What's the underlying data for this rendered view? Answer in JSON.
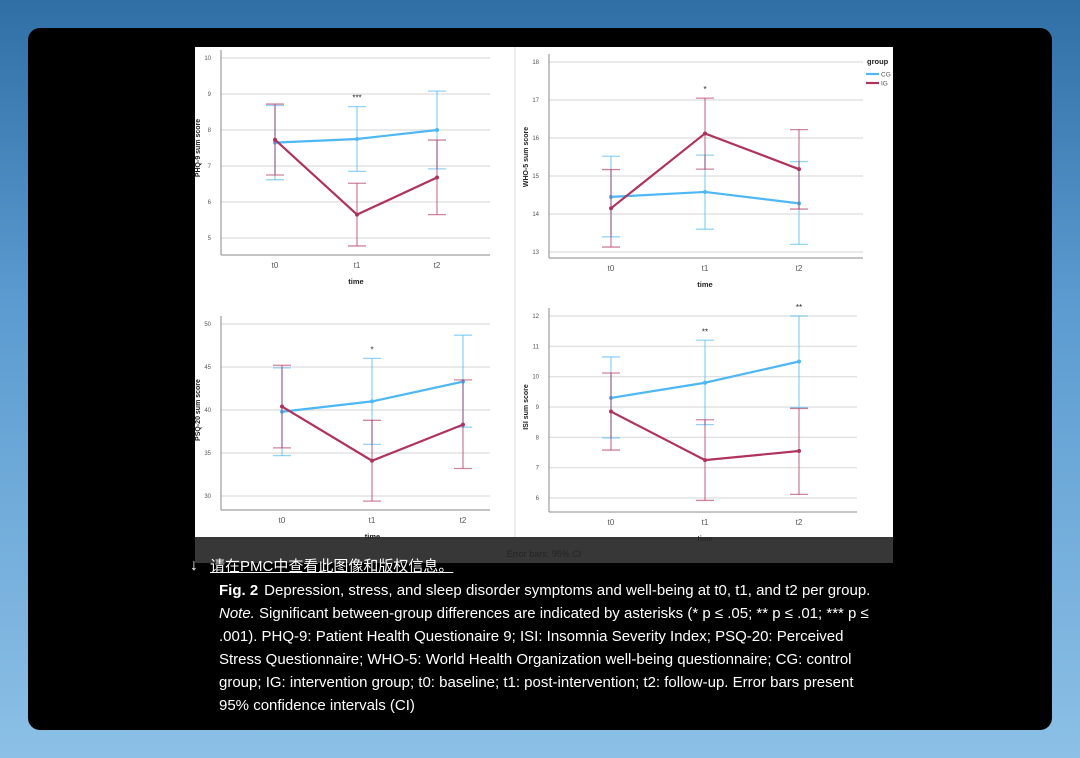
{
  "pmc_link": "请在PMC中查看此图像和版权信息。",
  "caption": {
    "label": "Fig. 2",
    "text_1": "Depression, stress, and sleep disorder symptoms and well-being at t0, t1, and t2 per group. ",
    "note_label": "Note.",
    "text_2": " Significant between-group differences are indicated by asterisks (* p ≤ .05; ** p ≤ .01; *** p ≤ .001). PHQ-9: Patient Health Questionaire 9; ISI: Insomnia Severity Index; PSQ-20: Perceived Stress Questionnaire; WHO-5: World Health Organization well-being questionnaire; CG: control group; IG: intervention group; t0: baseline; t1: post-intervention; t2: follow-up. Error bars present 95% confidence intervals (CI)"
  },
  "figure_footer": "Error bars: 95% CI",
  "colors": {
    "CG": "#4db8f5",
    "IG": "#b0325f"
  },
  "legend": {
    "title": "group",
    "items": [
      "CG",
      "IG"
    ]
  },
  "chart_data": [
    {
      "type": "line",
      "ylabel": "PHQ-9 sum score",
      "xlabel": "time",
      "categories": [
        "t0",
        "t1",
        "t2"
      ],
      "ylim": [
        5,
        10
      ],
      "yticks": [
        5,
        6,
        7,
        8,
        9,
        10
      ],
      "annotations": [
        "",
        "***",
        ""
      ],
      "series": [
        {
          "name": "CG",
          "values": [
            7.65,
            7.75,
            8.0
          ],
          "ci_low": [
            6.62,
            6.85,
            6.92
          ],
          "ci_high": [
            8.68,
            8.65,
            9.08
          ]
        },
        {
          "name": "IG",
          "values": [
            7.73,
            5.65,
            6.68
          ],
          "ci_low": [
            6.75,
            4.78,
            5.65
          ],
          "ci_high": [
            8.72,
            6.52,
            7.72
          ]
        }
      ]
    },
    {
      "type": "line",
      "ylabel": "WHO-5 sum score",
      "xlabel": "time",
      "categories": [
        "t0",
        "t1",
        "t2"
      ],
      "ylim": [
        13,
        18
      ],
      "yticks": [
        13,
        14,
        15,
        16,
        17,
        18
      ],
      "annotations": [
        "",
        "*",
        ""
      ],
      "series": [
        {
          "name": "CG",
          "values": [
            14.45,
            14.58,
            14.28
          ],
          "ci_low": [
            13.4,
            13.6,
            13.2
          ],
          "ci_high": [
            15.52,
            15.55,
            15.38
          ]
        },
        {
          "name": "IG",
          "values": [
            14.15,
            16.12,
            15.18
          ],
          "ci_low": [
            13.13,
            15.18,
            14.13
          ],
          "ci_high": [
            15.17,
            17.05,
            16.22
          ]
        }
      ]
    },
    {
      "type": "line",
      "ylabel": "PSQ-20 sum score",
      "xlabel": "time",
      "categories": [
        "t0",
        "t1",
        "t2"
      ],
      "ylim": [
        30,
        50
      ],
      "yticks": [
        30,
        35,
        40,
        45,
        50
      ],
      "annotations": [
        "",
        "*",
        ""
      ],
      "series": [
        {
          "name": "CG",
          "values": [
            39.8,
            41.0,
            43.3
          ],
          "ci_low": [
            34.7,
            36.0,
            38.0
          ],
          "ci_high": [
            44.9,
            46.0,
            48.7
          ]
        },
        {
          "name": "IG",
          "values": [
            40.4,
            34.1,
            38.3
          ],
          "ci_low": [
            35.6,
            29.4,
            33.2
          ],
          "ci_high": [
            45.2,
            38.8,
            43.5
          ]
        }
      ]
    },
    {
      "type": "line",
      "ylabel": "ISI sum score",
      "xlabel": "time",
      "categories": [
        "t0",
        "t1",
        "t2"
      ],
      "ylim": [
        6,
        12
      ],
      "yticks": [
        6,
        7,
        8,
        9,
        10,
        11,
        12
      ],
      "annotations": [
        "",
        "**",
        "**"
      ],
      "series": [
        {
          "name": "CG",
          "values": [
            9.3,
            9.8,
            10.5
          ],
          "ci_low": [
            7.98,
            8.42,
            8.98
          ],
          "ci_high": [
            10.65,
            11.2,
            12.0
          ]
        },
        {
          "name": "IG",
          "values": [
            8.85,
            7.25,
            7.55
          ],
          "ci_low": [
            7.58,
            5.92,
            6.12
          ],
          "ci_high": [
            10.12,
            8.58,
            8.95
          ]
        }
      ]
    }
  ]
}
